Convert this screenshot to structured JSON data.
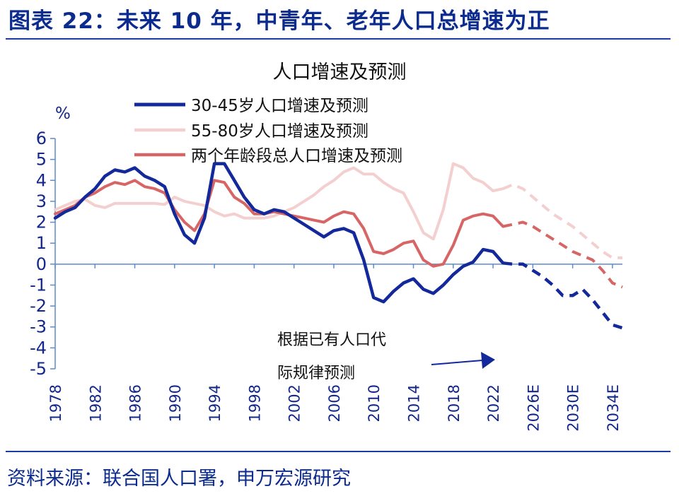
{
  "figure": {
    "title": "图表 22：未来 10 年，中青年、老年人口总增速为正",
    "source": "资料来源：联合国人口署，申万宏源研究"
  },
  "colors": {
    "accent": "#0c2b8e",
    "series_30_45": "#13289a",
    "series_55_80": "#f4cfcf",
    "series_total": "#d86565",
    "axis": "#5b8ccc"
  },
  "chart_data": {
    "type": "line",
    "title": "人口增速及预测",
    "ylabel": "%",
    "xlabel": "",
    "ylim": [
      -5,
      6
    ],
    "yticks": [
      6,
      5,
      4,
      3,
      2,
      1,
      0,
      -1,
      -2,
      -3,
      -4,
      -5
    ],
    "x_tick_labels": [
      "1978",
      "1982",
      "1986",
      "1990",
      "1994",
      "1998",
      "2002",
      "2006",
      "2010",
      "2014",
      "2018",
      "2022",
      "2026E",
      "2030E",
      "2034E"
    ],
    "x_tick_years": [
      1978,
      1982,
      1986,
      1990,
      1994,
      1998,
      2002,
      2006,
      2010,
      2014,
      2018,
      2022,
      2026,
      2030,
      2034
    ],
    "x_range": [
      1978,
      2035
    ],
    "forecast_start": 2023,
    "legend_position": "top-center",
    "grid": false,
    "annotation": {
      "lines": [
        "根据已有人口代",
        "际规律预测"
      ],
      "arrow": "right"
    },
    "series": [
      {
        "name": "30-45岁人口增速及预测",
        "color": "#13289a",
        "width": 4.5,
        "x": [
          1978,
          1979,
          1980,
          1981,
          1982,
          1983,
          1984,
          1985,
          1986,
          1987,
          1988,
          1989,
          1990,
          1991,
          1992,
          1993,
          1994,
          1995,
          1996,
          1997,
          1998,
          1999,
          2000,
          2001,
          2002,
          2003,
          2004,
          2005,
          2006,
          2007,
          2008,
          2009,
          2010,
          2011,
          2012,
          2013,
          2014,
          2015,
          2016,
          2017,
          2018,
          2019,
          2020,
          2021,
          2022,
          2023,
          2024,
          2025,
          2026,
          2027,
          2028,
          2029,
          2030,
          2031,
          2032,
          2033,
          2034,
          2035
        ],
        "values": [
          2.2,
          2.5,
          2.7,
          3.2,
          3.6,
          4.2,
          4.5,
          4.4,
          4.6,
          4.2,
          4.0,
          3.7,
          2.4,
          1.4,
          1.0,
          2.2,
          4.8,
          4.8,
          4.0,
          3.2,
          2.6,
          2.4,
          2.6,
          2.5,
          2.2,
          1.9,
          1.6,
          1.3,
          1.6,
          1.7,
          1.5,
          0.2,
          -1.6,
          -1.8,
          -1.3,
          -0.9,
          -0.7,
          -1.2,
          -1.4,
          -1.0,
          -0.5,
          -0.1,
          0.1,
          0.7,
          0.6,
          0.05,
          0.0,
          0.0,
          -0.3,
          -0.6,
          -1.0,
          -1.5,
          -1.5,
          -1.2,
          -1.7,
          -2.3,
          -2.9,
          -3.05
        ]
      },
      {
        "name": "55-80岁人口增速及预测",
        "color": "#f4cfcf",
        "width": 4,
        "x": [
          1978,
          1979,
          1980,
          1981,
          1982,
          1983,
          1984,
          1985,
          1986,
          1987,
          1988,
          1989,
          1990,
          1991,
          1992,
          1993,
          1994,
          1995,
          1996,
          1997,
          1998,
          1999,
          2000,
          2001,
          2002,
          2003,
          2004,
          2005,
          2006,
          2007,
          2008,
          2009,
          2010,
          2011,
          2012,
          2013,
          2014,
          2015,
          2016,
          2017,
          2018,
          2019,
          2020,
          2021,
          2022,
          2023,
          2024,
          2025,
          2026,
          2027,
          2028,
          2029,
          2030,
          2031,
          2032,
          2033,
          2034,
          2035
        ],
        "values": [
          2.6,
          2.8,
          3.0,
          3.1,
          2.8,
          2.7,
          2.9,
          2.9,
          2.9,
          2.9,
          2.9,
          2.85,
          3.2,
          3.0,
          2.9,
          2.8,
          2.5,
          2.3,
          2.4,
          2.2,
          2.2,
          2.2,
          2.3,
          2.5,
          2.7,
          3.0,
          3.3,
          3.7,
          4.0,
          4.4,
          4.6,
          4.3,
          4.3,
          3.9,
          3.6,
          3.4,
          2.5,
          1.5,
          1.2,
          2.6,
          4.8,
          4.6,
          4.1,
          3.9,
          3.5,
          3.6,
          3.8,
          3.6,
          3.2,
          2.8,
          2.4,
          2.1,
          1.8,
          1.4,
          1.0,
          0.6,
          0.3,
          0.3
        ]
      },
      {
        "name": "两个年龄段总人口增速及预测",
        "color": "#d86565",
        "width": 4,
        "x": [
          1978,
          1979,
          1980,
          1981,
          1982,
          1983,
          1984,
          1985,
          1986,
          1987,
          1988,
          1989,
          1990,
          1991,
          1992,
          1993,
          1994,
          1995,
          1996,
          1997,
          1998,
          1999,
          2000,
          2001,
          2002,
          2003,
          2004,
          2005,
          2006,
          2007,
          2008,
          2009,
          2010,
          2011,
          2012,
          2013,
          2014,
          2015,
          2016,
          2017,
          2018,
          2019,
          2020,
          2021,
          2022,
          2023,
          2024,
          2025,
          2026,
          2027,
          2028,
          2029,
          2030,
          2031,
          2032,
          2033,
          2034,
          2035
        ],
        "values": [
          2.4,
          2.6,
          2.8,
          3.2,
          3.4,
          3.7,
          3.9,
          3.8,
          4.0,
          3.7,
          3.6,
          3.4,
          2.6,
          2.0,
          1.6,
          2.4,
          4.0,
          3.9,
          3.2,
          2.9,
          2.4,
          2.4,
          2.5,
          2.4,
          2.3,
          2.2,
          2.1,
          2.0,
          2.3,
          2.5,
          2.4,
          1.7,
          0.6,
          0.5,
          0.7,
          1.0,
          1.1,
          0.2,
          -0.1,
          0.0,
          0.9,
          2.1,
          2.3,
          2.4,
          2.3,
          1.8,
          1.9,
          2.0,
          1.8,
          1.5,
          1.2,
          0.9,
          0.6,
          0.4,
          0.2,
          -0.3,
          -0.9,
          -1.1
        ]
      }
    ]
  }
}
